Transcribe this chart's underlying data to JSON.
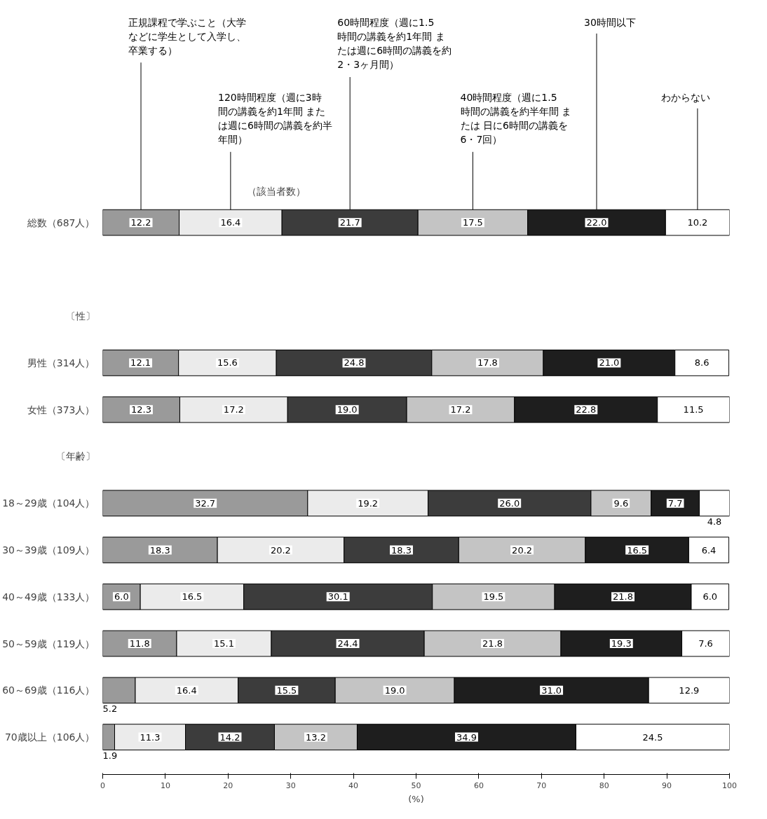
{
  "chart_data": {
    "type": "bar",
    "orientation": "horizontal",
    "stacked": true,
    "categories": [
      "総数（687人）",
      null,
      "〔性〕",
      "男性（314人）",
      "女性（373人）",
      "〔年齢〕",
      "18～29歳（104人）",
      "30～39歳（109人）",
      "40～49歳（133人）",
      "50～59歳（119人）",
      "60～69歳（116人）",
      "70歳以上（106人）"
    ],
    "series": [
      {
        "name": "正規課程で学ぶこと（大学などに学生として入学し、卒業する）",
        "color": "#9a9a9a",
        "values": [
          12.2,
          null,
          null,
          12.1,
          12.3,
          null,
          32.7,
          18.3,
          6.0,
          11.8,
          5.2,
          1.9
        ],
        "value_labels": [
          "12.2",
          null,
          null,
          "12.1",
          "12.3",
          null,
          "32.7",
          "18.3",
          "6.0",
          "11.8",
          "5.2",
          "1.9"
        ]
      },
      {
        "name": "120時間程度（週に3時間の講義を約1年間 または週に6時間の講義を約半年間）",
        "color": "#ebebeb",
        "values": [
          16.4,
          null,
          null,
          15.6,
          17.2,
          null,
          19.2,
          20.2,
          16.5,
          15.1,
          16.4,
          11.3
        ],
        "value_labels": [
          "16.4",
          null,
          null,
          "15.6",
          "17.2",
          null,
          "19.2",
          "20.2",
          "16.5",
          "15.1",
          "16.4",
          "11.3"
        ]
      },
      {
        "name": "60時間程度（週に1.5時間の講義を約1年間 または週に6時間の講義を約2・3ヶ月間）",
        "color": "#3c3c3c",
        "values": [
          21.7,
          null,
          null,
          24.8,
          19.0,
          null,
          26.0,
          18.3,
          30.1,
          24.4,
          15.5,
          14.2
        ],
        "value_labels": [
          "21.7",
          null,
          null,
          "24.8",
          "19.0",
          null,
          "26.0",
          "18.3",
          "30.1",
          "24.4",
          "15.5",
          "14.2"
        ]
      },
      {
        "name": "40時間程度（週に1.5時間の講義を約半年間 または 日に6時間の講義を6・7回）",
        "color": "#c4c4c4",
        "values": [
          17.5,
          null,
          null,
          17.8,
          17.2,
          null,
          9.6,
          20.2,
          19.5,
          21.8,
          19.0,
          13.2
        ],
        "value_labels": [
          "17.5",
          null,
          null,
          "17.8",
          "17.2",
          null,
          "9.6",
          "20.2",
          "19.5",
          "21.8",
          "19.0",
          "13.2"
        ]
      },
      {
        "name": "30時間以下",
        "color": "#1e1e1e",
        "values": [
          22.0,
          null,
          null,
          21.0,
          22.8,
          null,
          7.7,
          16.5,
          21.8,
          19.3,
          31.0,
          34.9
        ],
        "value_labels": [
          "22.0",
          null,
          null,
          "21.0",
          "22.8",
          null,
          "7.7",
          "16.5",
          "21.8",
          "19.3",
          "31.0",
          "34.9"
        ]
      },
      {
        "name": "わからない",
        "color": "#ffffff",
        "values": [
          10.2,
          null,
          null,
          8.6,
          11.5,
          null,
          4.8,
          6.4,
          6.0,
          7.6,
          12.9,
          24.5
        ],
        "value_labels": [
          "10.2",
          null,
          null,
          "8.6",
          "11.5",
          null,
          "4.8",
          "6.4",
          "6.0",
          "7.6",
          "12.9",
          "24.5"
        ]
      }
    ],
    "xlim": [
      0,
      100
    ],
    "xticks": [
      0,
      10,
      20,
      30,
      40,
      50,
      60,
      70,
      80,
      90,
      100
    ],
    "xlabel": "(%)",
    "legend": "top",
    "grid": false,
    "annotations": [
      "（該当者数）"
    ]
  }
}
